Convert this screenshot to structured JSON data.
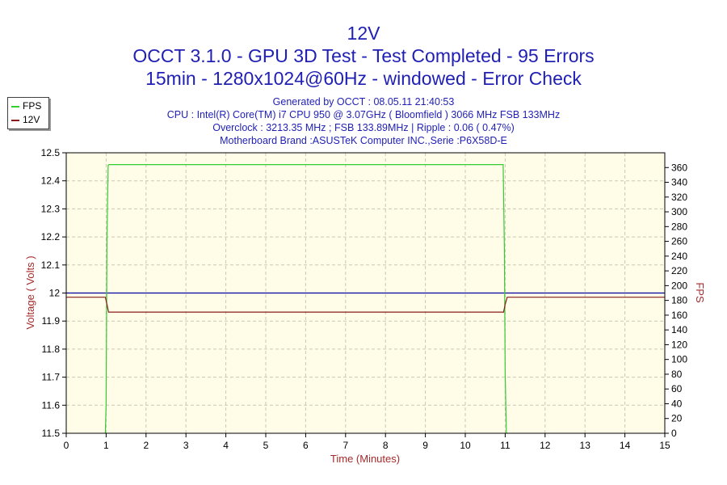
{
  "chart_data": {
    "type": "line",
    "title": "12V",
    "subtitle": [
      "OCCT 3.1.0 - GPU 3D Test - Test Completed - 95 Errors",
      "15min - 1280x1024@60Hz - windowed - Error Check"
    ],
    "info": [
      "Generated by OCCT : 08.05.11 21:40:53",
      "CPU : Intel(R) Core(TM) i7 CPU 950 @ 3.07GHz ( Bloomfield ) 3066 MHz FSB 133MHz",
      "Overclock : 3213.35 MHz ; FSB 133.89MHz | Ripple : 0.06 ( 0.47%)",
      "Motherboard Brand :ASUSTeK Computer INC.,Serie :P6X58D-E"
    ],
    "xlabel": "Time (Minutes)",
    "ylabel": "Voltage ( Volts )",
    "y2label": "FPS",
    "xlim": [
      0,
      15
    ],
    "ylim": [
      11.5,
      12.5
    ],
    "y2lim": [
      0,
      380
    ],
    "grid": true,
    "legend_position": "top-left",
    "x_ticks": [
      "0",
      "1",
      "2",
      "3",
      "4",
      "5",
      "6",
      "7",
      "8",
      "9",
      "10",
      "11",
      "12",
      "13",
      "14",
      "15"
    ],
    "y_ticks": [
      "11.5",
      "11.6",
      "11.7",
      "11.8",
      "11.9",
      "12",
      "12.1",
      "12.2",
      "12.3",
      "12.4",
      "12.5"
    ],
    "y2_ticks": [
      "0",
      "20",
      "40",
      "60",
      "80",
      "100",
      "120",
      "140",
      "160",
      "180",
      "200",
      "220",
      "240",
      "260",
      "280",
      "300",
      "320",
      "340",
      "360"
    ],
    "reference_line": {
      "y": 12.0,
      "color": "#0000a0"
    },
    "series": [
      {
        "name": "FPS",
        "axis": "y2",
        "color": "#33cc33",
        "x": [
          0.98,
          1.0,
          1.02,
          1.05,
          1.07,
          2,
          4,
          6,
          8,
          10,
          10.95,
          10.98,
          11.0,
          11.03
        ],
        "values": [
          0,
          40,
          260,
          363,
          364,
          364,
          364,
          364,
          364,
          364,
          364,
          250,
          80,
          0
        ]
      },
      {
        "name": "12V",
        "axis": "y",
        "color": "#8b1a1a",
        "x": [
          0,
          0.98,
          1.02,
          1.06,
          5,
          10,
          10.96,
          11.0,
          11.05,
          15
        ],
        "values": [
          11.985,
          11.985,
          11.96,
          11.932,
          11.932,
          11.932,
          11.932,
          11.96,
          11.985,
          11.985
        ]
      }
    ]
  }
}
